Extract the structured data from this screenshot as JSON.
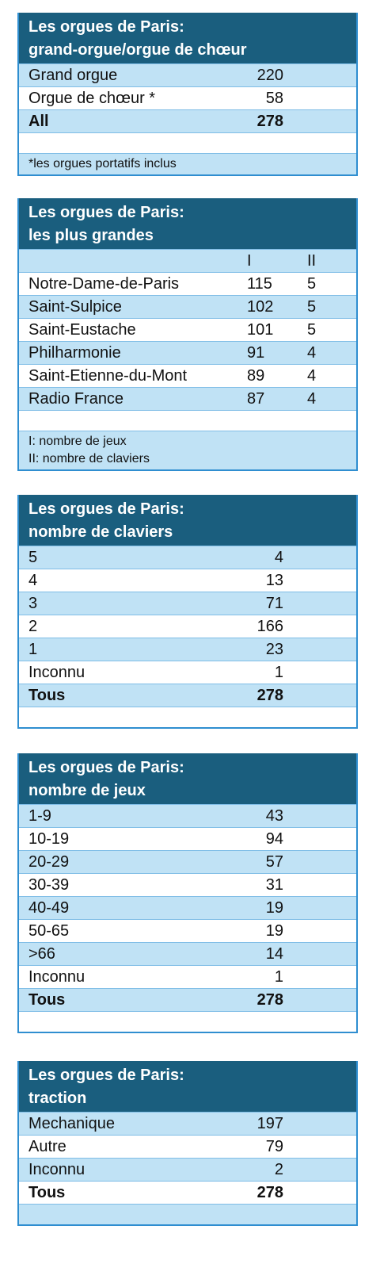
{
  "t1": {
    "title_line1": "Les orgues de Paris:",
    "title_line2": "grand-orgue/orgue de chœur",
    "rows": [
      {
        "label": "Grand orgue",
        "value": "220"
      },
      {
        "label": "Orgue de chœur *",
        "value": "58"
      },
      {
        "label": "All",
        "value": "278"
      }
    ],
    "note": "*les orgues portatifs inclus"
  },
  "t2": {
    "title_line1": "Les orgues de Paris:",
    "title_line2": "les plus grandes",
    "col1": "I",
    "col2": "II",
    "rows": [
      {
        "label": "Notre-Dame-de-Paris",
        "v1": "115",
        "v2": "5"
      },
      {
        "label": "Saint-Sulpice",
        "v1": "102",
        "v2": "5"
      },
      {
        "label": "Saint-Eustache",
        "v1": "101",
        "v2": "5"
      },
      {
        "label": "Philharmonie",
        "v1": "91",
        "v2": "4"
      },
      {
        "label": "Saint-Etienne-du-Mont",
        "v1": "89",
        "v2": "4"
      },
      {
        "label": "Radio France",
        "v1": "87",
        "v2": "4"
      }
    ],
    "note1": "I: nombre de jeux",
    "note2": "II: nombre de claviers"
  },
  "t3": {
    "title_line1": "Les orgues de Paris:",
    "title_line2": "nombre de claviers",
    "rows": [
      {
        "label": "5",
        "value": "4"
      },
      {
        "label": "4",
        "value": "13"
      },
      {
        "label": "3",
        "value": "71"
      },
      {
        "label": "2",
        "value": "166"
      },
      {
        "label": "1",
        "value": "23"
      },
      {
        "label": "Inconnu",
        "value": "1"
      },
      {
        "label": "Tous",
        "value": "278"
      }
    ]
  },
  "t4": {
    "title_line1": "Les orgues de Paris:",
    "title_line2": "nombre de jeux",
    "rows": [
      {
        "label": "1-9",
        "value": "43"
      },
      {
        "label": "10-19",
        "value": "94"
      },
      {
        "label": "20-29",
        "value": "57"
      },
      {
        "label": "30-39",
        "value": "31"
      },
      {
        "label": "40-49",
        "value": "19"
      },
      {
        "label": "50-65",
        "value": "19"
      },
      {
        "label": ">66",
        "value": "14"
      },
      {
        "label": "Inconnu",
        "value": "1"
      },
      {
        "label": "Tous",
        "value": "278"
      }
    ]
  },
  "t5": {
    "title_line1": "Les orgues de Paris:",
    "title_line2": "traction",
    "rows": [
      {
        "label": "Mechanique",
        "value": "197"
      },
      {
        "label": "Autre",
        "value": "79"
      },
      {
        "label": "Inconnu",
        "value": "2"
      },
      {
        "label": "Tous",
        "value": "278"
      }
    ]
  },
  "colors": {
    "header_bg": "#1a5e7e",
    "band_blue": "#c0e2f5",
    "border": "#2f8ed0"
  }
}
